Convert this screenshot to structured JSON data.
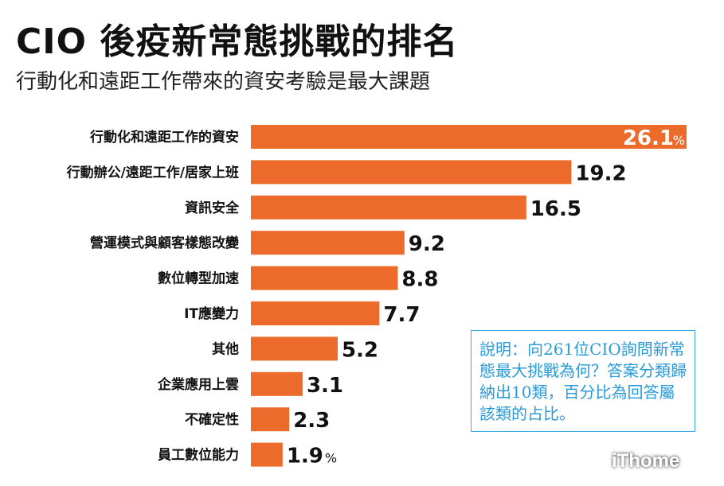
{
  "header": {
    "title": "CIO 後疫新常態挑戰的排名",
    "subtitle": "行動化和遠距工作帶來的資安考驗是最大課題"
  },
  "chart_data": {
    "type": "bar",
    "orientation": "horizontal",
    "categories": [
      "行動化和遠距工作的資安",
      "行動辦公/遠距工作/居家上班",
      "資訊安全",
      "營運模式與顧客樣態改變",
      "數位轉型加速",
      "IT應變力",
      "其他",
      "企業應用上雲",
      "不確定性",
      "員工數位能力"
    ],
    "values": [
      26.1,
      19.2,
      16.5,
      9.2,
      8.8,
      7.7,
      5.2,
      3.1,
      2.3,
      1.9
    ],
    "value_labels": [
      "26.1",
      "19.2",
      "16.5",
      "9.2",
      "8.8",
      "7.7",
      "5.2",
      "3.1",
      "2.3",
      "1.9"
    ],
    "unit": "%",
    "xlim": [
      0,
      26.1
    ],
    "bar_color": "#ec6b2a",
    "grid": false,
    "legend": "none"
  },
  "note": "說明：向261位CIO詢問新常態最大挑戰為何？答案分類歸納出10類，百分比為回答屬該類的占比。",
  "logo": "iThome"
}
